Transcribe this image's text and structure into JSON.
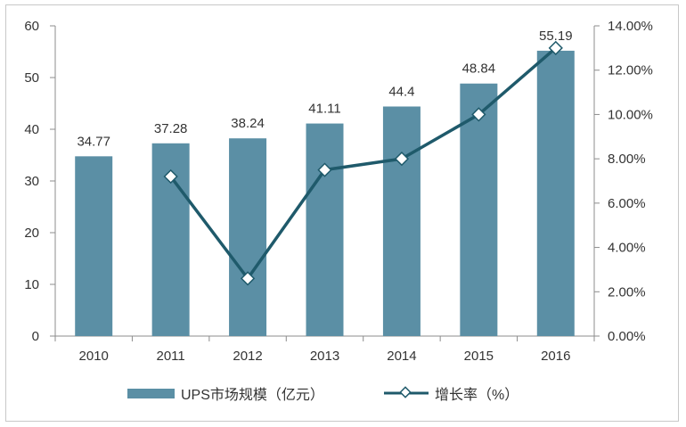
{
  "chart_data": {
    "type": "bar",
    "categories": [
      "2010",
      "2011",
      "2012",
      "2013",
      "2014",
      "2015",
      "2016"
    ],
    "series": [
      {
        "name": "UPS市场规模（亿元）",
        "type": "bar",
        "axis": "left",
        "values": [
          34.77,
          37.28,
          38.24,
          41.11,
          44.4,
          48.84,
          55.19
        ],
        "labels": [
          "34.77",
          "37.28",
          "38.24",
          "41.11",
          "44.4",
          "48.84",
          "55.19"
        ],
        "color": "#5b8fa5"
      },
      {
        "name": "增长率（%）",
        "type": "line",
        "axis": "right",
        "values": [
          null,
          7.2,
          2.6,
          7.5,
          8.0,
          10.0,
          13.0
        ],
        "color": "#1f5a6b"
      }
    ],
    "y_left": {
      "min": 0,
      "max": 60,
      "ticks": [
        "0",
        "10",
        "20",
        "30",
        "40",
        "50",
        "60"
      ]
    },
    "y_right": {
      "min": 0,
      "max": 14,
      "ticks": [
        "0.00%",
        "2.00%",
        "4.00%",
        "6.00%",
        "8.00%",
        "10.00%",
        "12.00%",
        "14.00%"
      ]
    },
    "legend": "bottom",
    "grid": false
  }
}
